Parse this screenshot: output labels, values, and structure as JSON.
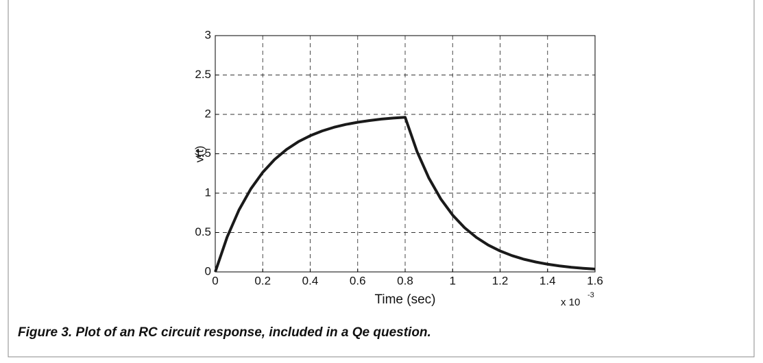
{
  "chart_data": {
    "type": "line",
    "x": [
      0,
      0.05,
      0.1,
      0.15,
      0.2,
      0.25,
      0.3,
      0.35,
      0.4,
      0.45,
      0.5,
      0.55,
      0.6,
      0.65,
      0.7,
      0.75,
      0.8,
      0.85,
      0.9,
      0.95,
      1.0,
      1.05,
      1.1,
      1.15,
      1.2,
      1.25,
      1.3,
      1.35,
      1.4,
      1.45,
      1.5,
      1.55,
      1.6
    ],
    "values": [
      0,
      0.442,
      0.787,
      1.055,
      1.264,
      1.427,
      1.554,
      1.653,
      1.729,
      1.789,
      1.836,
      1.872,
      1.9,
      1.922,
      1.94,
      1.953,
      1.963,
      1.529,
      1.191,
      0.927,
      0.722,
      0.562,
      0.438,
      0.341,
      0.266,
      0.207,
      0.161,
      0.126,
      0.098,
      0.076,
      0.059,
      0.046,
      0.036
    ],
    "color": "#1a1a1a",
    "xlabel": "Time (sec)",
    "ylabel": "v(t)",
    "x_multiplier": "x 10",
    "x_multiplier_exponent": "-3",
    "xlim": [
      0,
      1.6
    ],
    "xticks": [
      0,
      0.2,
      0.4,
      0.6,
      0.8,
      1,
      1.2,
      1.4,
      1.6
    ],
    "ylim": [
      0,
      3
    ],
    "yticks": [
      0,
      0.5,
      1,
      1.5,
      2,
      2.5,
      3
    ],
    "grid": true
  },
  "caption": "Figure 3. Plot of an RC circuit response, included in a Qe question."
}
